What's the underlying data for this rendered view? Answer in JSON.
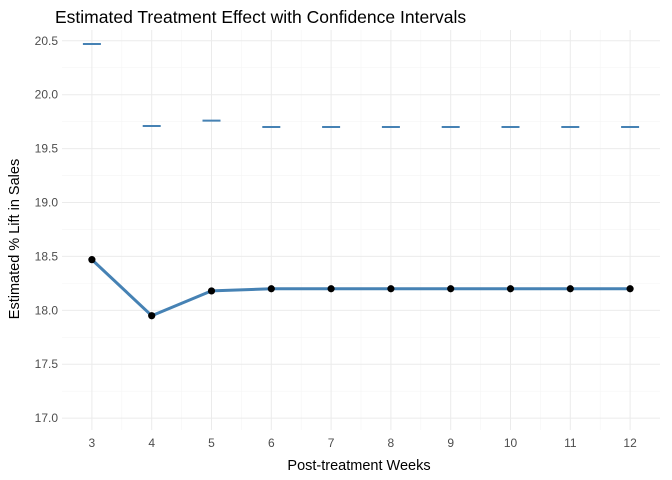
{
  "chart_data": {
    "type": "line",
    "title": "Estimated Treatment Effect with Confidence Intervals",
    "xlabel": "Post-treatment Weeks",
    "ylabel": "Estimated % Lift in Sales",
    "x": [
      3,
      4,
      5,
      6,
      7,
      8,
      9,
      10,
      11,
      12
    ],
    "series": [
      {
        "values": [
          18.47,
          17.95,
          18.18,
          18.2,
          18.2,
          18.2,
          18.2,
          18.2,
          18.2,
          18.2
        ]
      }
    ],
    "ci_upper": [
      20.47,
      19.71,
      19.76,
      19.7,
      19.7,
      19.7,
      19.7,
      19.7,
      19.7,
      19.7
    ],
    "xlim": [
      2.5,
      12.5
    ],
    "ylim": [
      16.89,
      20.6
    ],
    "yticks": [
      "17.0",
      "17.5",
      "18.0",
      "18.5",
      "19.0",
      "19.5",
      "20.0",
      "20.5"
    ],
    "xticks": [
      "3",
      "4",
      "5",
      "6",
      "7",
      "8",
      "9",
      "10",
      "11",
      "12"
    ],
    "grid": true,
    "colors": {
      "line": "#4682b4",
      "point": "#000000",
      "ci": "#4682b4"
    }
  }
}
